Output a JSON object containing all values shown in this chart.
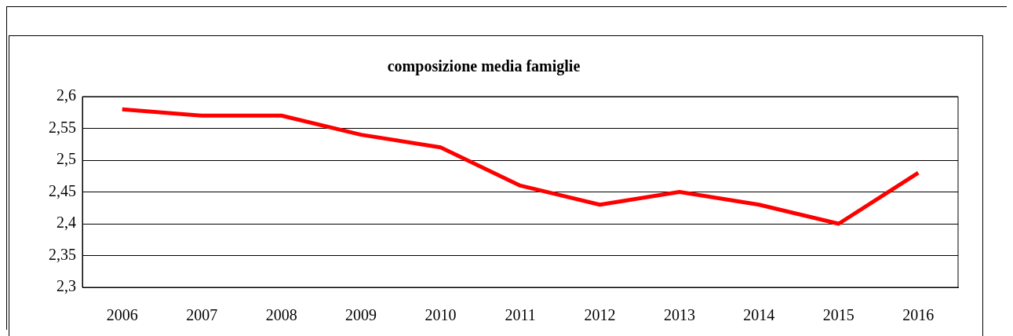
{
  "chart_data": {
    "type": "line",
    "title": "composizione media famiglie",
    "categories": [
      "2006",
      "2007",
      "2008",
      "2009",
      "2010",
      "2011",
      "2012",
      "2013",
      "2014",
      "2015",
      "2016"
    ],
    "series": [
      {
        "color": "#ff0000",
        "values": [
          2.58,
          2.57,
          2.57,
          2.54,
          2.52,
          2.46,
          2.43,
          2.45,
          2.43,
          2.4,
          2.48
        ]
      }
    ],
    "ylim": [
      2.3,
      2.6
    ],
    "yticks": [
      {
        "value": 2.3,
        "label": "2,3"
      },
      {
        "value": 2.35,
        "label": "2,35"
      },
      {
        "value": 2.4,
        "label": "2,4"
      },
      {
        "value": 2.45,
        "label": "2,45"
      },
      {
        "value": 2.5,
        "label": "2,5"
      },
      {
        "value": 2.55,
        "label": "2,55"
      },
      {
        "value": 2.6,
        "label": "2,6"
      }
    ],
    "grid": "y",
    "legend": false,
    "marker": "none",
    "line_style": "solid"
  }
}
